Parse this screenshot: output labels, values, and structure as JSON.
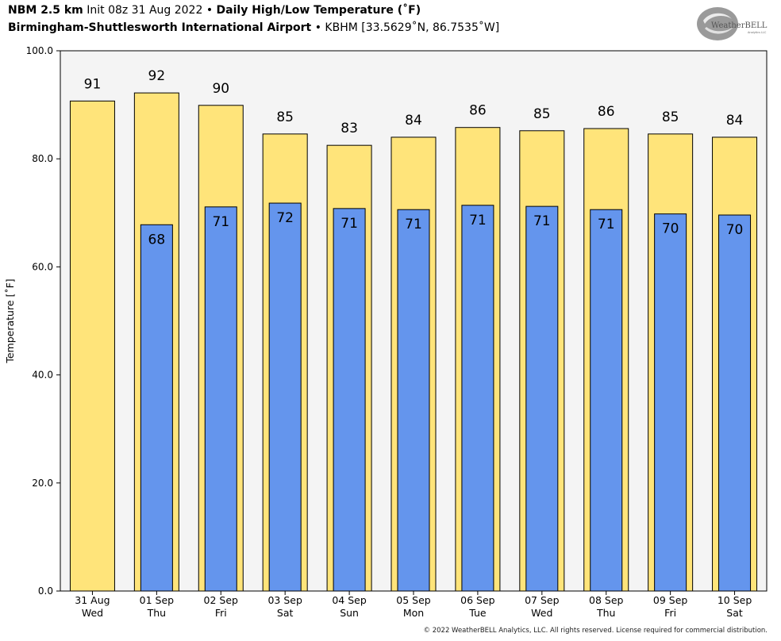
{
  "header": {
    "model": "NBM 2.5 km",
    "init": "Init 08z 31 Aug 2022",
    "sep1": "•",
    "product": "Daily High/Low Temperature (˚F)",
    "station": "Birmingham-Shuttlesworth International Airport",
    "sep2": "•",
    "coords": "KBHM [33.5629˚N, 86.7535˚W]"
  },
  "logo": {
    "text_main": "WeatherBELL",
    "text_sub": "Analytics LLC"
  },
  "copyright": "© 2022 WeatherBELL Analytics, LLC. All rights reserved. License required for commercial distribution.",
  "colors": {
    "high": "#FFE47A",
    "low": "#6495ED",
    "plot_bg": "#F4F4F4",
    "border": "#000000"
  },
  "chart_data": {
    "type": "bar",
    "ylabel": "Temperature [˚F]",
    "ylim": [
      0,
      100
    ],
    "yticks": [
      "0.0",
      "20.0",
      "40.0",
      "60.0",
      "80.0",
      "100.0"
    ],
    "categories": [
      [
        "31 Aug",
        "Wed"
      ],
      [
        "01 Sep",
        "Thu"
      ],
      [
        "02 Sep",
        "Fri"
      ],
      [
        "03 Sep",
        "Sat"
      ],
      [
        "04 Sep",
        "Sun"
      ],
      [
        "05 Sep",
        "Mon"
      ],
      [
        "06 Sep",
        "Tue"
      ],
      [
        "07 Sep",
        "Wed"
      ],
      [
        "08 Sep",
        "Thu"
      ],
      [
        "09 Sep",
        "Fri"
      ],
      [
        "10 Sep",
        "Sat"
      ]
    ],
    "series": [
      {
        "name": "High",
        "values": [
          90.7,
          92.2,
          89.9,
          84.6,
          82.5,
          84.0,
          85.8,
          85.2,
          85.6,
          84.6,
          84.0
        ],
        "labels": [
          "91",
          "92",
          "90",
          "85",
          "83",
          "84",
          "86",
          "85",
          "86",
          "85",
          "84"
        ]
      },
      {
        "name": "Low",
        "values": [
          null,
          67.8,
          71.1,
          71.8,
          70.8,
          70.6,
          71.4,
          71.2,
          70.6,
          69.8,
          69.6
        ],
        "labels": [
          "",
          "68",
          "71",
          "72",
          "71",
          "71",
          "71",
          "71",
          "71",
          "70",
          "70"
        ]
      }
    ],
    "grid": false
  }
}
